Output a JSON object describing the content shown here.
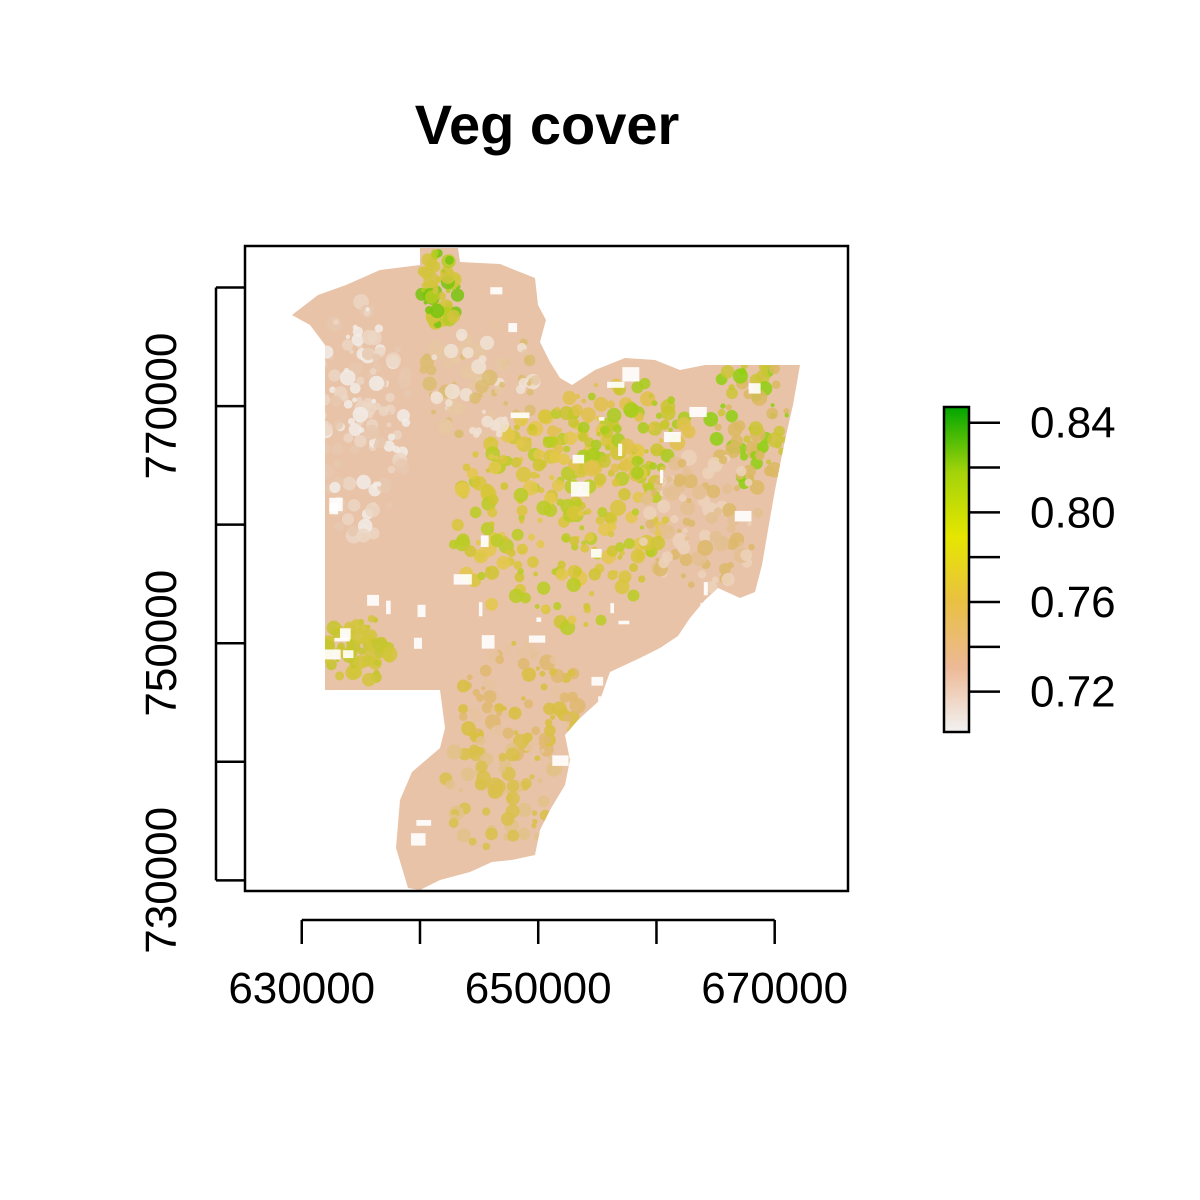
{
  "title": "Veg cover",
  "map": {
    "x_ticks": [
      630000,
      650000,
      670000
    ],
    "x_tick_labels": [
      "630000",
      "650000",
      "670000"
    ],
    "x_minor_ticks": [
      640000,
      660000
    ],
    "y_ticks": [
      730000,
      750000,
      770000
    ],
    "y_tick_labels": [
      "730000",
      "750000",
      "770000"
    ],
    "y_minor_ticks": [
      740000,
      760000,
      780000
    ],
    "xlim": [
      625200,
      676200
    ],
    "ylim": [
      729100,
      783500
    ]
  },
  "legend": {
    "labels": [
      "0.84",
      "0.80",
      "0.76",
      "0.72"
    ],
    "major_values": [
      0.84,
      0.8,
      0.76,
      0.72
    ],
    "minor_values": [
      0.82,
      0.78,
      0.74
    ],
    "range": [
      0.702,
      0.847
    ],
    "colors": [
      "#f2f2f2",
      "#edb996",
      "#e9c043",
      "#e6e600",
      "#a3d30a",
      "#00a600"
    ]
  }
}
